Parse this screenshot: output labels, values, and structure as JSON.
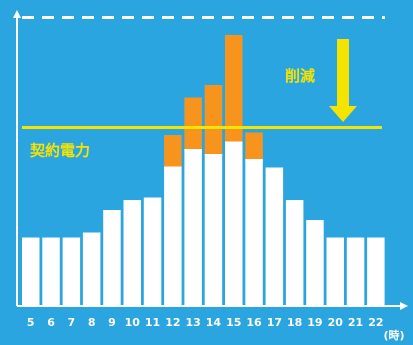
{
  "chart_data": {
    "type": "bar",
    "stacked": true,
    "categories": [
      "5",
      "6",
      "7",
      "8",
      "9",
      "10",
      "11",
      "12",
      "13",
      "14",
      "15",
      "16",
      "17",
      "18",
      "19",
      "20",
      "21",
      "22"
    ],
    "series": [
      {
        "color": "#ffffff",
        "values": [
          27,
          27,
          27,
          29,
          38,
          42,
          43,
          55,
          62,
          60,
          65,
          58,
          55,
          42,
          34,
          27,
          27,
          27
        ]
      },
      {
        "color": "#f7941d",
        "values": [
          0,
          0,
          0,
          0,
          0,
          0,
          0,
          13,
          21,
          28,
          43,
          11,
          0,
          0,
          0,
          0,
          0,
          0
        ]
      }
    ],
    "x_unit": "(時)",
    "ylim": [
      0,
      110
    ],
    "reference_lines": [
      {
        "value": 71,
        "label": "契約電力",
        "color": "#f5e400",
        "style": "solid"
      },
      {
        "value": 115,
        "color": "#ffffff",
        "style": "dashed"
      }
    ],
    "annotations": [
      {
        "text": "削減",
        "color": "#f5e400",
        "arrow": "down"
      }
    ],
    "grid": false,
    "legend": "none"
  }
}
